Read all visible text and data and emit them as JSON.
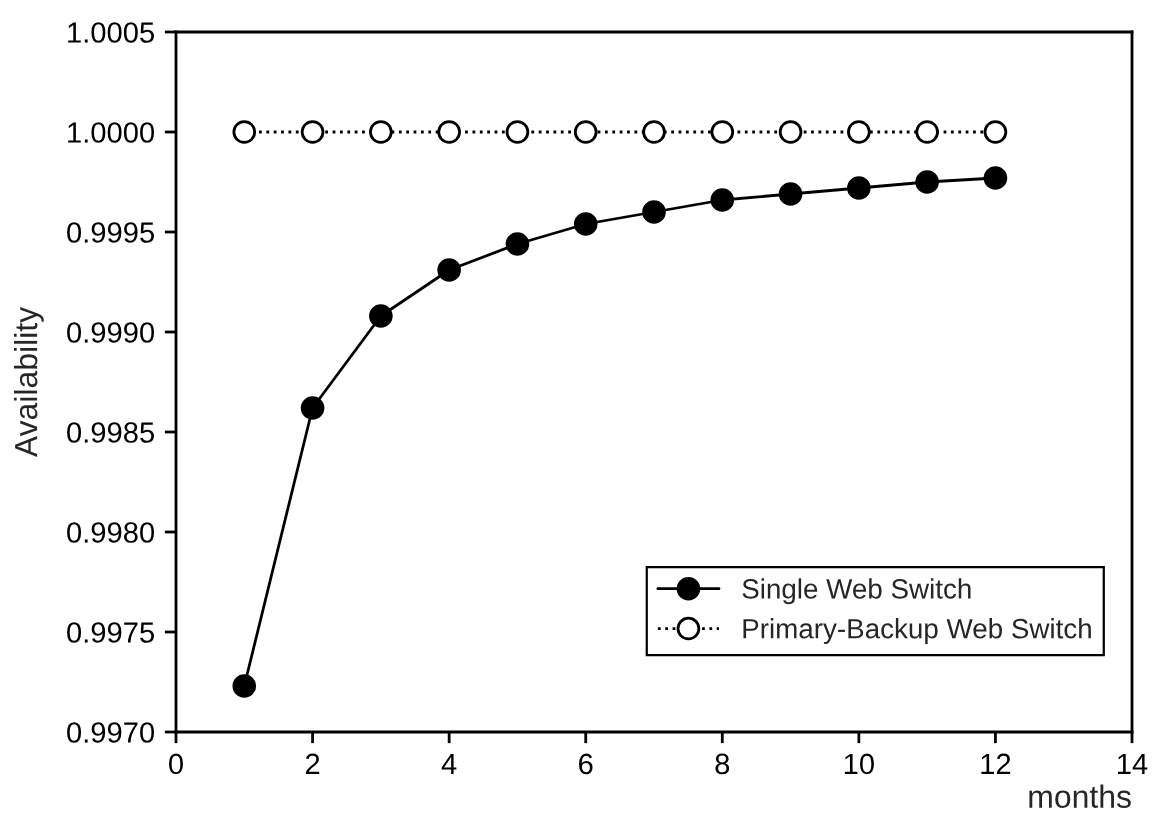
{
  "chart_data": {
    "type": "line",
    "xlabel": "months",
    "ylabel": "Availability",
    "x": [
      1,
      2,
      3,
      4,
      5,
      6,
      7,
      8,
      9,
      10,
      11,
      12
    ],
    "series": [
      {
        "name": "Single Web Switch",
        "color": "#000000",
        "marker": "circle",
        "line_style": "solid",
        "values": [
          0.99723,
          0.99862,
          0.99908,
          0.99931,
          0.99944,
          0.99954,
          0.9996,
          0.99966,
          0.99969,
          0.99972,
          0.99975,
          0.99977
        ]
      },
      {
        "name": "Primary-Backup Web Switch",
        "color": "#000000",
        "marker": "circle",
        "line_style": "dotted",
        "values": [
          1.0,
          1.0,
          1.0,
          1.0,
          1.0,
          1.0,
          1.0,
          1.0,
          1.0,
          1.0,
          1.0,
          1.0
        ]
      }
    ],
    "xlim": [
      0,
      14
    ],
    "xticks": [
      0,
      2,
      4,
      6,
      8,
      10,
      12,
      14
    ],
    "ylim": [
      0.997,
      1.0005
    ],
    "yticks": [
      {
        "value": 0.997,
        "label": "0.9970"
      },
      {
        "value": 0.9975,
        "label": "0.9975"
      },
      {
        "value": 0.998,
        "label": "0.9980"
      },
      {
        "value": 0.9985,
        "label": "0.9985"
      },
      {
        "value": 0.999,
        "label": "0.9990"
      },
      {
        "value": 0.9995,
        "label": "0.9995"
      },
      {
        "value": 1.0,
        "label": "1.0000"
      },
      {
        "value": 1.0005,
        "label": "1.0005"
      }
    ],
    "grid": false,
    "legend": "lower right"
  }
}
